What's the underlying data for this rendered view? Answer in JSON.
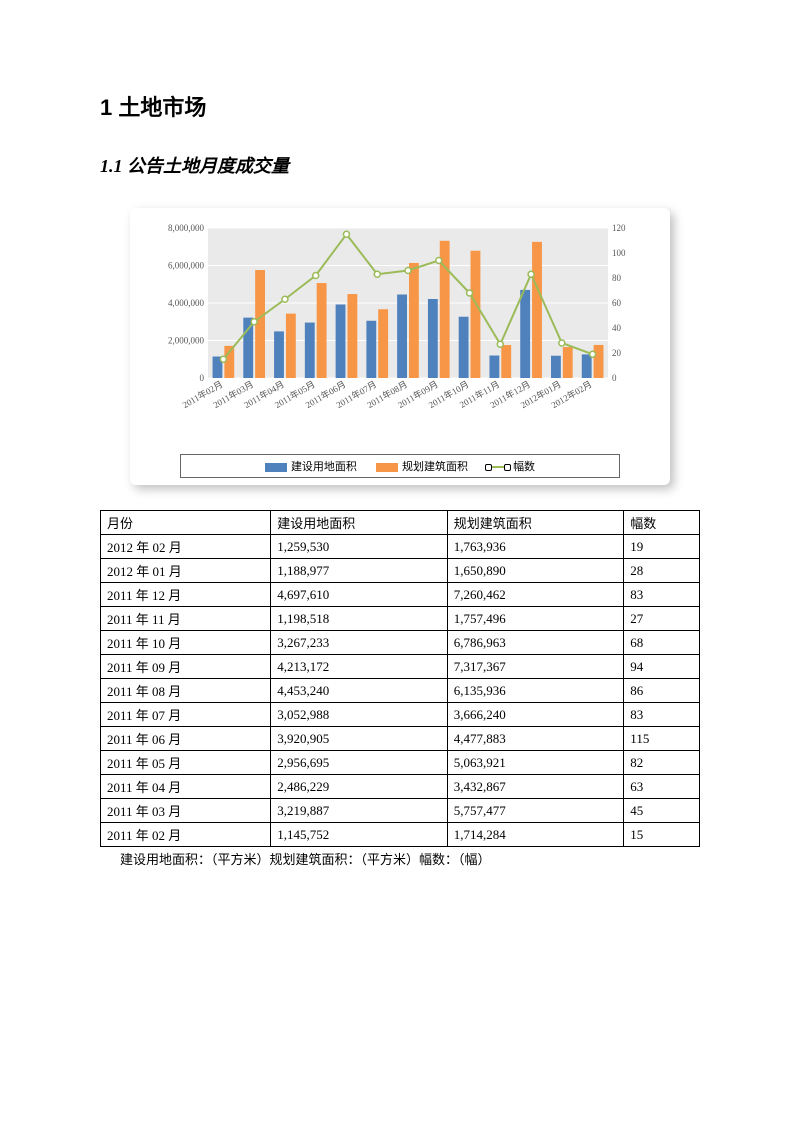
{
  "headings": {
    "h1": "1 土地市场",
    "h2": "1.1 公告土地月度成交量"
  },
  "chart": {
    "type": "combo-bar-line",
    "background_color": "#ffffff",
    "plot_background": "#eaeaea",
    "grid_color": "#ffffff",
    "categories": [
      "2011年02月",
      "2011年03月",
      "2011年04月",
      "2011年05月",
      "2011年06月",
      "2011年07月",
      "2011年08月",
      "2011年09月",
      "2011年10月",
      "2011年11月",
      "2011年12月",
      "2012年01月",
      "2012年02月"
    ],
    "left_axis": {
      "min": 0,
      "max": 8000000,
      "step": 2000000,
      "labels": [
        "0",
        "2,000,000",
        "4,000,000",
        "6,000,000",
        "8,000,000"
      ]
    },
    "right_axis": {
      "min": 0,
      "max": 120,
      "step": 20,
      "labels": [
        "0",
        "20",
        "40",
        "60",
        "80",
        "100",
        "120"
      ]
    },
    "series": [
      {
        "name": "建设用地面积",
        "type": "bar",
        "color": "#4f81bd",
        "values": [
          1145752,
          3219887,
          2486229,
          2956695,
          3920905,
          3052988,
          4453240,
          4213172,
          3267233,
          1198518,
          4697610,
          1188977,
          1259530
        ]
      },
      {
        "name": "规划建筑面积",
        "type": "bar",
        "color": "#f79646",
        "values": [
          1714284,
          5757477,
          3432867,
          5063921,
          4477883,
          3666240,
          6135936,
          7317367,
          6786963,
          1757496,
          7260462,
          1650890,
          1763936
        ]
      },
      {
        "name": "幅数",
        "type": "line",
        "color": "#9bbb59",
        "marker": "circle",
        "values": [
          15,
          45,
          63,
          82,
          115,
          83,
          86,
          94,
          68,
          27,
          83,
          28,
          19
        ]
      }
    ],
    "legend": {
      "items": [
        "建设用地面积",
        "规划建筑面积",
        "幅数"
      ]
    },
    "tick_fontsize": 9,
    "x_label_rotate": -30
  },
  "table": {
    "columns": [
      "月份",
      "建设用地面积",
      "规划建筑面积",
      "幅数"
    ],
    "rows": [
      [
        "2012 年 02 月",
        "1,259,530",
        "1,763,936",
        "19"
      ],
      [
        "2012 年 01 月",
        "1,188,977",
        "1,650,890",
        "28"
      ],
      [
        "2011 年 12 月",
        "4,697,610",
        "7,260,462",
        "83"
      ],
      [
        "2011 年 11 月",
        "1,198,518",
        "1,757,496",
        "27"
      ],
      [
        "2011 年 10 月",
        "3,267,233",
        "6,786,963",
        "68"
      ],
      [
        "2011 年 09 月",
        "4,213,172",
        "7,317,367",
        "94"
      ],
      [
        "2011 年 08 月",
        "4,453,240",
        "6,135,936",
        "86"
      ],
      [
        "2011 年 07 月",
        "3,052,988",
        "3,666,240",
        "83"
      ],
      [
        "2011 年 06 月",
        "3,920,905",
        "4,477,883",
        "115"
      ],
      [
        "2011 年 05 月",
        "2,956,695",
        "5,063,921",
        "82"
      ],
      [
        "2011 年 04 月",
        "2,486,229",
        "3,432,867",
        "63"
      ],
      [
        "2011 年 03 月",
        "3,219,887",
        "5,757,477",
        "45"
      ],
      [
        "2011 年 02 月",
        "1,145,752",
        "1,714,284",
        "15"
      ]
    ]
  },
  "footnote": "建设用地面积：（平方米）规划建筑面积：（平方米）幅数：（幅）"
}
